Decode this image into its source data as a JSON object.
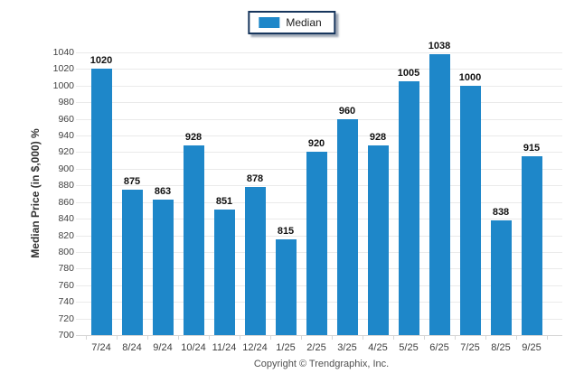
{
  "legend": {
    "label": "Median",
    "swatch_color": "#1e87c9"
  },
  "y_axis_title": "Median Price (in $,000) %",
  "footer": {
    "text": "Copyright © Trendgraphix, Inc."
  },
  "colors": {
    "bar": "#1e87c9",
    "gridline": "#eaeaea",
    "baseline": "#d6d6d6",
    "axis_text": "#404040",
    "legend_border": "#17365d"
  },
  "chart_data": {
    "type": "bar",
    "title": "",
    "categories": [
      "7/24",
      "8/24",
      "9/24",
      "10/24",
      "11/24",
      "12/24",
      "1/25",
      "2/25",
      "3/25",
      "4/25",
      "5/25",
      "6/25",
      "7/25",
      "8/25",
      "9/25"
    ],
    "series": [
      {
        "name": "Median",
        "values": [
          1020,
          875,
          863,
          928,
          851,
          878,
          815,
          920,
          960,
          928,
          1005,
          1038,
          1000,
          838,
          915
        ]
      }
    ],
    "xlabel": "",
    "ylabel": "Median Price (in $,000) %",
    "ylim": [
      700,
      1040
    ],
    "ytick_step": 20,
    "yticks": [
      700,
      720,
      740,
      760,
      780,
      800,
      820,
      840,
      860,
      880,
      900,
      920,
      940,
      960,
      980,
      1000,
      1020,
      1040
    ],
    "grid": true,
    "value_labels": true,
    "legend_position": "top-center",
    "bar_color": "#1e87c9"
  }
}
